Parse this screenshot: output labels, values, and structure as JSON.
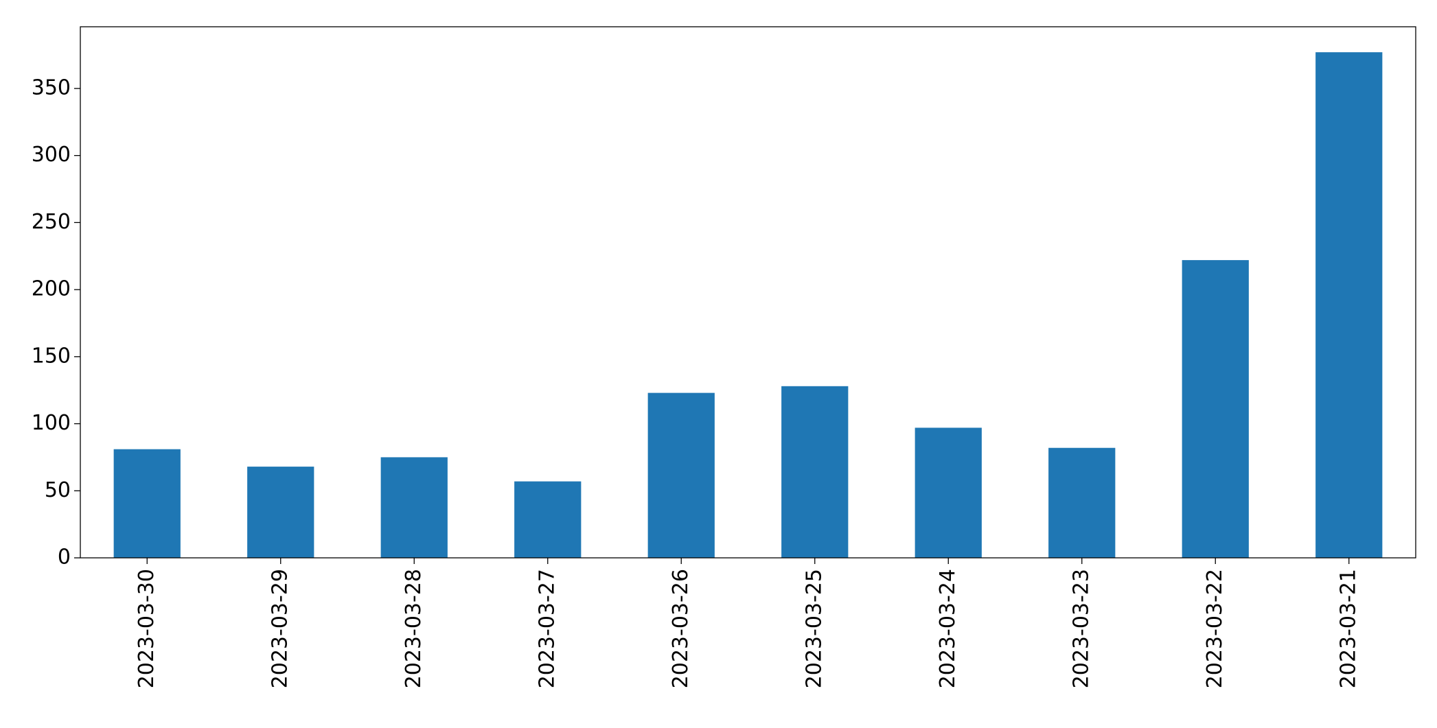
{
  "chart_data": {
    "type": "bar",
    "categories": [
      "2023-03-30",
      "2023-03-29",
      "2023-03-28",
      "2023-03-27",
      "2023-03-26",
      "2023-03-25",
      "2023-03-24",
      "2023-03-23",
      "2023-03-22",
      "2023-03-21"
    ],
    "values": [
      81,
      68,
      75,
      57,
      123,
      128,
      97,
      82,
      222,
      377
    ],
    "color": "#1f77b4",
    "ylim": [
      0,
      396
    ],
    "yticks": [
      0,
      50,
      100,
      150,
      200,
      250,
      300,
      350
    ],
    "grid": false
  }
}
